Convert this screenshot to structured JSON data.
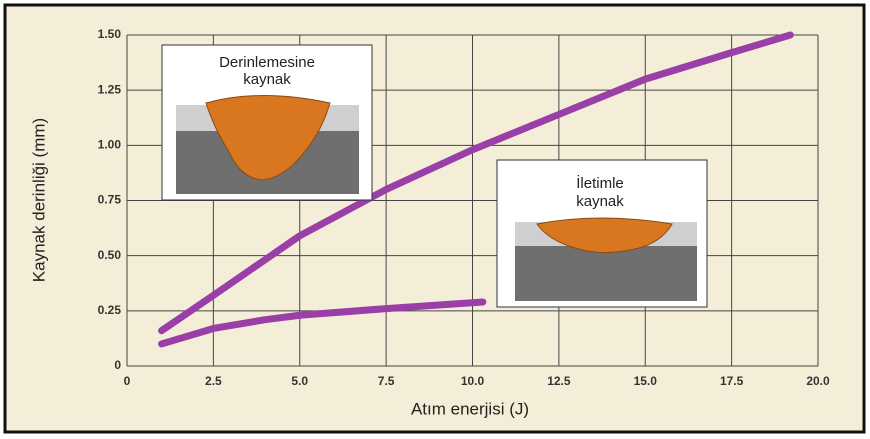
{
  "chart_data": {
    "type": "line",
    "x_label": "Atım enerjisi (J)",
    "y_label": "Kaynak derinliği (mm)",
    "xlim": [
      0,
      20
    ],
    "xticks": [
      0,
      2.5,
      {
        "value": 5,
        "label": "5.0"
      },
      7.5,
      {
        "value": 10,
        "label": "10.0"
      },
      12.5,
      {
        "value": 15,
        "label": "15.0"
      },
      17.5,
      {
        "value": 20,
        "label": "20.0"
      }
    ],
    "ylim": [
      0,
      1.5
    ],
    "yticks": [
      0,
      0.25,
      {
        "value": 0.5,
        "label": "0.50"
      },
      0.75,
      {
        "value": 1,
        "label": "1.00"
      },
      1.25,
      {
        "value": 1.5,
        "label": "1.50"
      }
    ],
    "grid": true,
    "series": [
      {
        "color": "#9a3ea8",
        "x": [
          1,
          2.5,
          5,
          7.5,
          10,
          12.5,
          15,
          17.5,
          19.2
        ],
        "values": [
          0.16,
          0.32,
          0.59,
          0.8,
          0.98,
          1.14,
          1.3,
          1.42,
          1.5
        ]
      },
      {
        "color": "#9a3ea8",
        "x": [
          1,
          2.5,
          4,
          5,
          7.5,
          10.3
        ],
        "values": [
          0.1,
          0.17,
          0.21,
          0.23,
          0.26,
          0.29
        ]
      }
    ],
    "annotations": [
      [
        "Derinlemesine",
        "kaynak"
      ],
      [
        "İletimle",
        "kaynak"
      ]
    ]
  }
}
